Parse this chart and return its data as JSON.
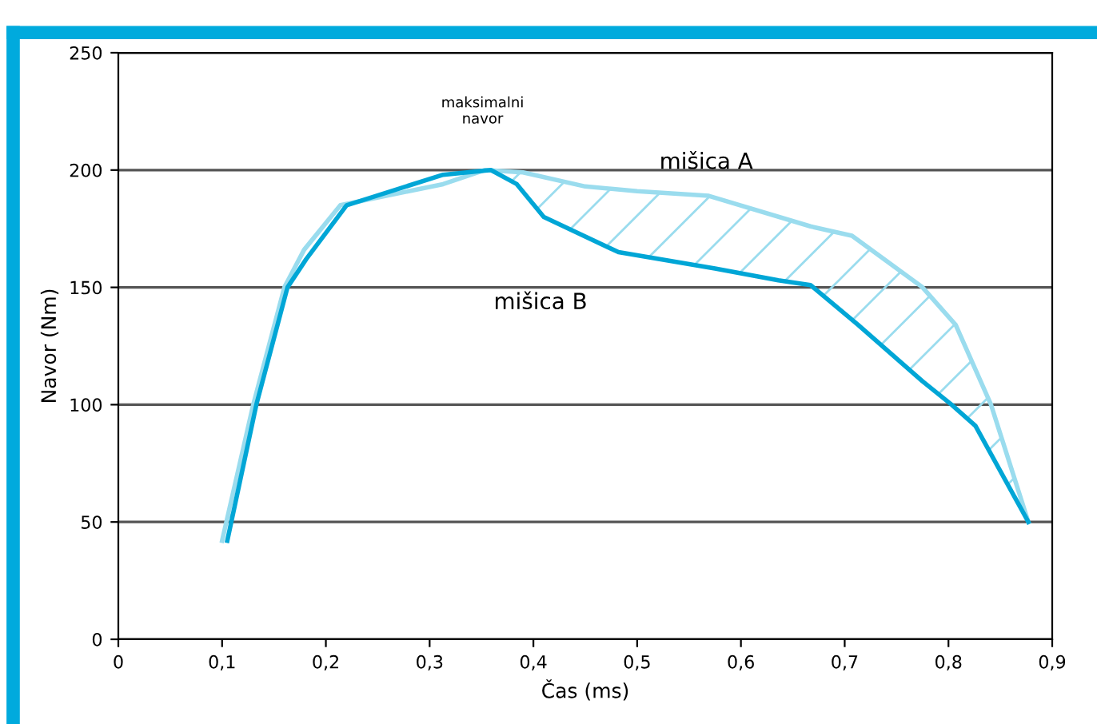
{
  "chart_data": {
    "type": "line",
    "xlabel": "Čas (ms)",
    "ylabel": "Navor (Nm)",
    "xlim": [
      0,
      0.9
    ],
    "ylim": [
      0,
      250
    ],
    "xticks": [
      0,
      {
        "value": 0.1,
        "label": "0,1"
      },
      {
        "value": 0.2,
        "label": "0,2"
      },
      {
        "value": 0.3,
        "label": "0,3"
      },
      {
        "value": 0.4,
        "label": "0,4"
      },
      {
        "value": 0.5,
        "label": "0,5"
      },
      {
        "value": 0.6,
        "label": "0,6"
      },
      {
        "value": 0.7,
        "label": "0,7"
      },
      {
        "value": 0.8,
        "label": "0,8"
      },
      {
        "value": 0.9,
        "label": "0,9"
      }
    ],
    "yticks": [
      0,
      50,
      100,
      150,
      200,
      250
    ],
    "grid": "y",
    "legend": false,
    "marker": "none",
    "line_style": "solid",
    "series": [
      {
        "name": "mišica A",
        "color": "#9adcee",
        "x": [
          0.1,
          0.13,
          0.16,
          0.179,
          0.214,
          0.313,
          0.353,
          0.39,
          0.45,
          0.5,
          0.569,
          0.667,
          0.707,
          0.775,
          0.807,
          0.841,
          0.877
        ],
        "values": [
          42,
          100,
          150,
          166,
          185,
          194,
          200,
          199,
          193,
          191,
          189,
          176,
          172,
          150,
          134,
          100,
          50
        ]
      },
      {
        "name": "mišica B",
        "color": "#00a6d6",
        "x": [
          0.105,
          0.133,
          0.148,
          0.163,
          0.181,
          0.22,
          0.313,
          0.359,
          0.384,
          0.41,
          0.482,
          0.575,
          0.636,
          0.667,
          0.713,
          0.775,
          0.803,
          0.826,
          0.877
        ],
        "values": [
          42,
          100,
          125,
          150,
          162,
          185,
          198,
          200,
          194,
          180,
          165,
          158,
          153,
          151,
          134,
          110,
          100,
          91,
          50
        ]
      }
    ],
    "annotations": [
      "maksimalni\nnavor"
    ]
  }
}
